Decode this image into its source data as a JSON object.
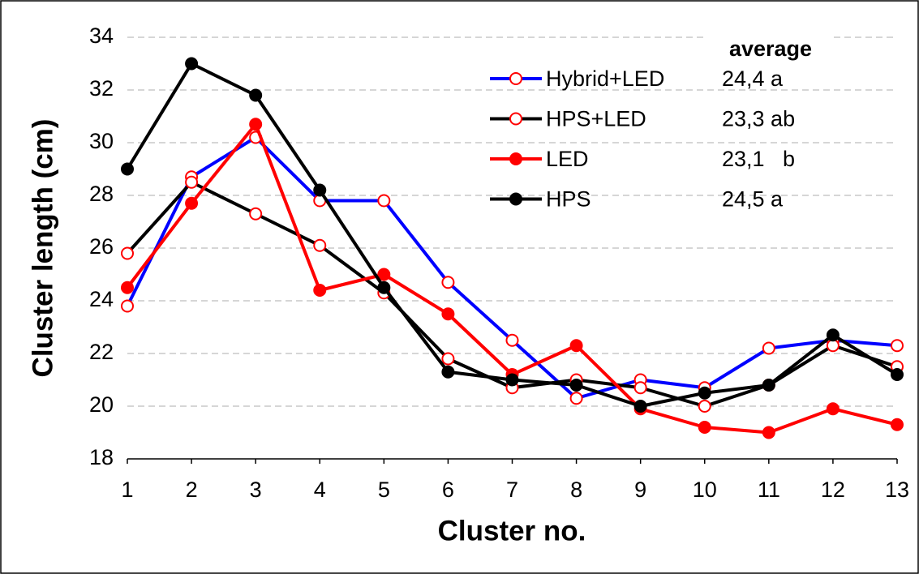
{
  "chart_data": {
    "type": "line",
    "x_label": "Cluster no.",
    "y_label": "Cluster length (cm)",
    "x": [
      1,
      2,
      3,
      4,
      5,
      6,
      7,
      8,
      9,
      10,
      11,
      12,
      13
    ],
    "xlim": [
      1,
      13
    ],
    "xticks": [
      1,
      2,
      3,
      4,
      5,
      6,
      7,
      8,
      9,
      10,
      11,
      12,
      13
    ],
    "ylim": [
      18,
      34
    ],
    "yticks": [
      18,
      20,
      22,
      24,
      26,
      28,
      30,
      32,
      34
    ],
    "grid": true,
    "legend_title": "average",
    "series": [
      {
        "name": "Hybrid+LED",
        "color": "#0000ff",
        "marker_color": "#ff0000",
        "marker": "open",
        "average": "24,4 a",
        "values": [
          23.8,
          28.7,
          30.2,
          27.8,
          27.8,
          24.7,
          22.5,
          20.3,
          21.0,
          20.7,
          22.2,
          22.5,
          22.3
        ]
      },
      {
        "name": "HPS+LED",
        "color": "#000000",
        "marker_color": "#ff0000",
        "marker": "open",
        "average": "23,3 ab",
        "values": [
          25.8,
          28.5,
          27.3,
          26.1,
          24.3,
          21.8,
          20.7,
          21.0,
          20.7,
          20.0,
          20.8,
          22.3,
          21.5
        ]
      },
      {
        "name": "LED",
        "color": "#ff0000",
        "marker_color": "#ff0000",
        "marker": "filled",
        "average": "23,1   b",
        "values": [
          24.5,
          27.7,
          30.7,
          24.4,
          25.0,
          23.5,
          21.2,
          22.3,
          19.9,
          19.2,
          19.0,
          19.9,
          19.3
        ]
      },
      {
        "name": "HPS",
        "color": "#000000",
        "marker_color": "#000000",
        "marker": "filled",
        "average": "24,5 a",
        "values": [
          29.0,
          33.0,
          31.8,
          28.2,
          24.5,
          21.3,
          21.0,
          20.8,
          20.0,
          20.5,
          20.8,
          22.7,
          21.2
        ]
      }
    ]
  }
}
